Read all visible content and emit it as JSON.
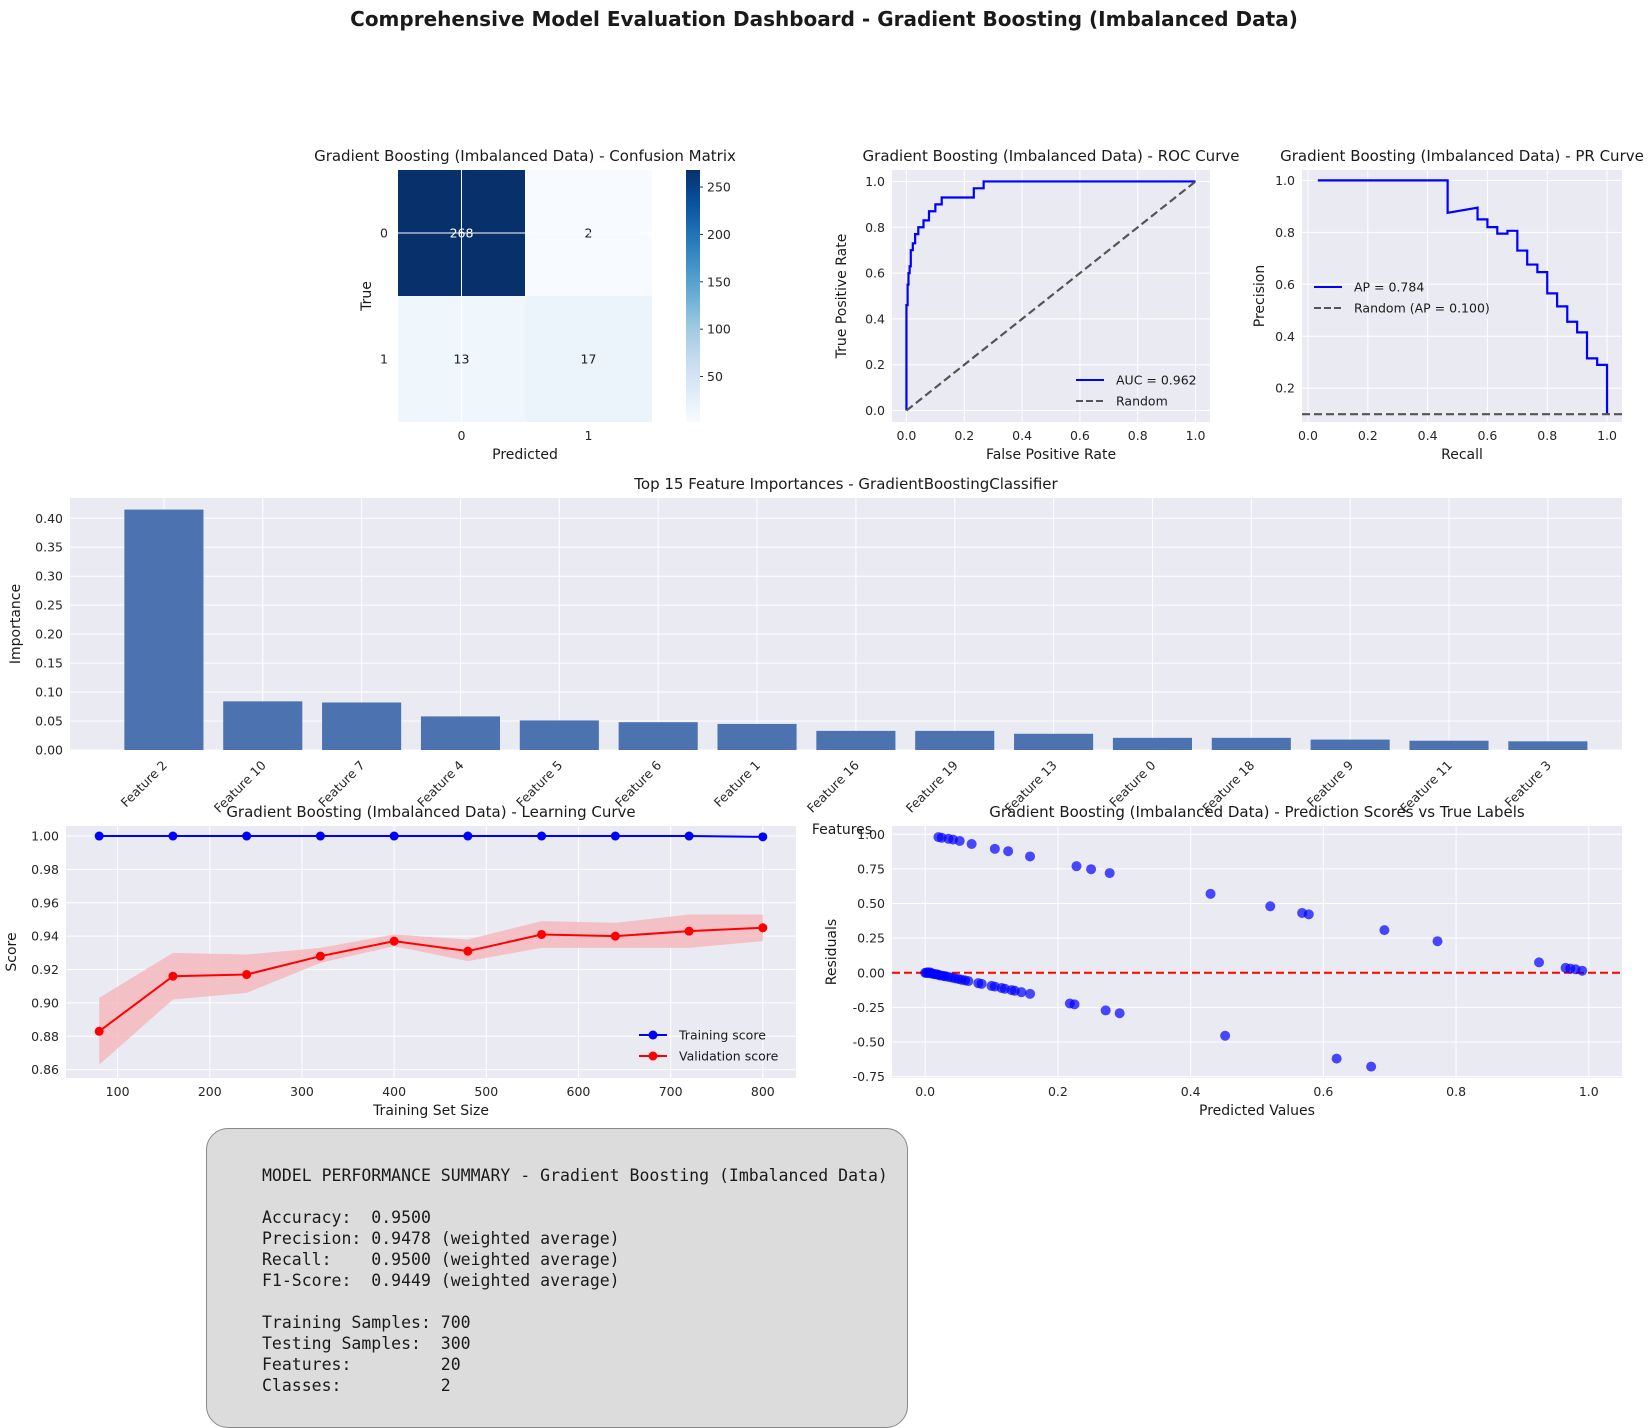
{
  "suptitle": "Comprehensive Model Evaluation Dashboard - Gradient Boosting (Imbalanced Data)",
  "colors": {
    "axes_bg": "#eaeaf2",
    "grid": "#ffffff",
    "blue_line": "#0000ff",
    "red_line": "#ff0000",
    "bar": "#4c72b0",
    "random_line": "#555555",
    "cm_dark": "#08306b",
    "cm_light": "#f7fbff",
    "red_band": "#f4b9be"
  },
  "chart_data": [
    {
      "id": "confusion",
      "type": "heatmap",
      "title": "Gradient Boosting (Imbalanced Data) - Confusion Matrix",
      "xlabel": "Predicted",
      "ylabel": "True",
      "x_labels": [
        "0",
        "1"
      ],
      "y_labels": [
        "0",
        "1"
      ],
      "matrix": [
        [
          268,
          2
        ],
        [
          13,
          17
        ]
      ],
      "cell_labels": [
        [
          "268",
          "2"
        ],
        [
          "13",
          "17"
        ]
      ],
      "colormap": "Blues",
      "colorbar": {
        "min": 2,
        "max": 268,
        "ticks": [
          50,
          100,
          150,
          200,
          250
        ]
      }
    },
    {
      "id": "roc",
      "type": "line",
      "title": "Gradient Boosting (Imbalanced Data) - ROC Curve",
      "xlabel": "False Positive Rate",
      "ylabel": "True Positive Rate",
      "xlim": [
        -0.05,
        1.05
      ],
      "ylim": [
        -0.05,
        1.05
      ],
      "xticks": [
        0.0,
        0.2,
        0.4,
        0.6,
        0.8,
        1.0
      ],
      "yticks": [
        0.0,
        0.2,
        0.4,
        0.6,
        0.8,
        1.0
      ],
      "tick_labels": [
        "0.0",
        "0.2",
        "0.4",
        "0.6",
        "0.8",
        "1.0"
      ],
      "legend_position": "lower-right",
      "series": [
        {
          "name": "AUC = 0.962",
          "style": "solid",
          "color": "#0000ff",
          "x": [
            0.0,
            0.0,
            0.004,
            0.004,
            0.007,
            0.007,
            0.011,
            0.011,
            0.015,
            0.015,
            0.022,
            0.022,
            0.03,
            0.03,
            0.041,
            0.041,
            0.059,
            0.059,
            0.078,
            0.078,
            0.1,
            0.1,
            0.122,
            0.122,
            0.144,
            0.144,
            0.233,
            0.233,
            0.267,
            0.267,
            1.0
          ],
          "y": [
            0.0,
            0.46,
            0.46,
            0.55,
            0.55,
            0.6,
            0.6,
            0.63,
            0.63,
            0.7,
            0.7,
            0.73,
            0.73,
            0.77,
            0.77,
            0.8,
            0.8,
            0.83,
            0.83,
            0.87,
            0.87,
            0.9,
            0.9,
            0.93,
            0.93,
            0.93,
            0.93,
            0.97,
            0.97,
            1.0,
            1.0
          ]
        },
        {
          "name": "Random",
          "style": "dashed",
          "color": "#555555",
          "x": [
            0,
            1
          ],
          "y": [
            0,
            1
          ]
        }
      ]
    },
    {
      "id": "pr",
      "type": "line",
      "title": "Gradient Boosting (Imbalanced Data) - PR Curve",
      "xlabel": "Recall",
      "ylabel": "Precision",
      "xlim": [
        -0.02,
        1.05
      ],
      "ylim": [
        0.07,
        1.04
      ],
      "xticks": [
        0.0,
        0.2,
        0.4,
        0.6,
        0.8,
        1.0
      ],
      "yticks": [
        0.2,
        0.4,
        0.6,
        0.8,
        1.0
      ],
      "xtick_labels": [
        "0.0",
        "0.2",
        "0.4",
        "0.6",
        "0.8",
        "1.0"
      ],
      "ytick_labels": [
        "0.2",
        "0.4",
        "0.6",
        "0.8",
        "1.0"
      ],
      "legend_position": "center-left",
      "series": [
        {
          "name": "AP = 0.784",
          "style": "solid",
          "color": "#0000ff",
          "x": [
            0.033,
            0.467,
            0.467,
            0.567,
            0.567,
            0.6,
            0.6,
            0.633,
            0.633,
            0.667,
            0.667,
            0.7,
            0.7,
            0.733,
            0.733,
            0.767,
            0.767,
            0.8,
            0.8,
            0.833,
            0.833,
            0.867,
            0.867,
            0.9,
            0.9,
            0.933,
            0.933,
            0.967,
            0.967,
            1.0,
            1.0
          ],
          "y": [
            1.0,
            1.0,
            0.875,
            0.895,
            0.85,
            0.85,
            0.82,
            0.82,
            0.795,
            0.795,
            0.806,
            0.806,
            0.73,
            0.73,
            0.676,
            0.676,
            0.647,
            0.647,
            0.565,
            0.565,
            0.515,
            0.515,
            0.456,
            0.456,
            0.415,
            0.415,
            0.315,
            0.315,
            0.29,
            0.29,
            0.1
          ]
        },
        {
          "name": "Random (AP = 0.100)",
          "style": "dashed",
          "color": "#555555",
          "x": [
            -0.02,
            1.05
          ],
          "y": [
            0.1,
            0.1
          ]
        }
      ]
    },
    {
      "id": "importance",
      "type": "bar",
      "title": "Top 15 Feature Importances - GradientBoostingClassifier",
      "xlabel": "Features",
      "ylabel": "Importance",
      "ylim": [
        0,
        0.435
      ],
      "yticks": [
        0.0,
        0.05,
        0.1,
        0.15,
        0.2,
        0.25,
        0.3,
        0.35,
        0.4
      ],
      "ytick_labels": [
        "0.00",
        "0.05",
        "0.10",
        "0.15",
        "0.20",
        "0.25",
        "0.30",
        "0.35",
        "0.40"
      ],
      "categories": [
        "Feature 2",
        "Feature 10",
        "Feature 7",
        "Feature 4",
        "Feature 5",
        "Feature 6",
        "Feature 1",
        "Feature 16",
        "Feature 19",
        "Feature 13",
        "Feature 0",
        "Feature 18",
        "Feature 9",
        "Feature 11",
        "Feature 3"
      ],
      "values": [
        0.415,
        0.084,
        0.082,
        0.058,
        0.051,
        0.048,
        0.045,
        0.033,
        0.033,
        0.028,
        0.021,
        0.021,
        0.018,
        0.016,
        0.015
      ]
    },
    {
      "id": "learning",
      "type": "line",
      "title": "Gradient Boosting (Imbalanced Data) - Learning Curve",
      "xlabel": "Training Set Size",
      "ylabel": "Score",
      "xlim": [
        44,
        836
      ],
      "ylim": [
        0.855,
        1.006
      ],
      "xticks": [
        100,
        200,
        300,
        400,
        500,
        600,
        700,
        800
      ],
      "yticks": [
        0.86,
        0.88,
        0.9,
        0.92,
        0.94,
        0.96,
        0.98,
        1.0
      ],
      "xtick_labels": [
        "100",
        "200",
        "300",
        "400",
        "500",
        "600",
        "700",
        "800"
      ],
      "ytick_labels": [
        "0.86",
        "0.88",
        "0.90",
        "0.92",
        "0.94",
        "0.96",
        "0.98",
        "1.00"
      ],
      "legend_position": "lower-right",
      "x": [
        80,
        160,
        240,
        320,
        400,
        480,
        560,
        640,
        720,
        800
      ],
      "series": [
        {
          "name": "Training score",
          "color": "#0000ff",
          "values": [
            1.0,
            1.0,
            1.0,
            1.0,
            1.0,
            1.0,
            1.0,
            1.0,
            1.0,
            0.9995
          ],
          "lower": [
            1.0,
            1.0,
            1.0,
            1.0,
            1.0,
            1.0,
            1.0,
            1.0,
            1.0,
            0.999
          ],
          "upper": [
            1.0,
            1.0,
            1.0,
            1.0,
            1.0,
            1.0,
            1.0,
            1.0,
            1.0,
            1.0
          ]
        },
        {
          "name": "Validation score",
          "color": "#ff0000",
          "values": [
            0.883,
            0.916,
            0.917,
            0.928,
            0.937,
            0.931,
            0.941,
            0.94,
            0.943,
            0.945
          ],
          "lower": [
            0.863,
            0.902,
            0.906,
            0.924,
            0.934,
            0.925,
            0.933,
            0.933,
            0.933,
            0.937
          ],
          "upper": [
            0.903,
            0.93,
            0.929,
            0.933,
            0.941,
            0.938,
            0.949,
            0.948,
            0.953,
            0.953
          ]
        }
      ]
    },
    {
      "id": "residuals",
      "type": "scatter",
      "title": "Gradient Boosting (Imbalanced Data) - Prediction Scores vs True Labels",
      "xlabel": "Predicted Values",
      "ylabel": "Residuals",
      "xlim": [
        -0.05,
        1.05
      ],
      "ylim": [
        -0.76,
        1.06
      ],
      "xticks": [
        0.0,
        0.2,
        0.4,
        0.6,
        0.8,
        1.0
      ],
      "yticks": [
        -0.75,
        -0.5,
        -0.25,
        0.0,
        0.25,
        0.5,
        0.75,
        1.0
      ],
      "xtick_labels": [
        "0.0",
        "0.2",
        "0.4",
        "0.6",
        "0.8",
        "1.0"
      ],
      "ytick_labels": [
        "-0.75",
        "-0.50",
        "-0.25",
        "0.00",
        "0.25",
        "0.50",
        "0.75",
        "1.00"
      ],
      "reference_line": {
        "y": 0,
        "color": "#ff0000",
        "style": "dashed"
      },
      "points": [
        [
          0.02,
          0.98
        ],
        [
          0.025,
          0.975
        ],
        [
          0.035,
          0.968
        ],
        [
          0.042,
          0.962
        ],
        [
          0.052,
          0.952
        ],
        [
          0.07,
          0.93
        ],
        [
          0.105,
          0.895
        ],
        [
          0.125,
          0.878
        ],
        [
          0.158,
          0.84
        ],
        [
          0.228,
          0.77
        ],
        [
          0.25,
          0.748
        ],
        [
          0.278,
          0.72
        ],
        [
          0.43,
          0.57
        ],
        [
          0.52,
          0.48
        ],
        [
          0.568,
          0.432
        ],
        [
          0.578,
          0.422
        ],
        [
          0.692,
          0.308
        ],
        [
          0.772,
          0.228
        ],
        [
          0.925,
          0.075
        ],
        [
          0.965,
          0.035
        ],
        [
          0.972,
          0.03
        ],
        [
          0.98,
          0.025
        ],
        [
          0.99,
          0.015
        ],
        [
          0.0,
          0.0
        ],
        [
          0.002,
          -0.002
        ],
        [
          0.004,
          0.004
        ],
        [
          0.006,
          -0.003
        ],
        [
          0.008,
          0.002
        ],
        [
          0.01,
          -0.005
        ],
        [
          0.012,
          -0.008
        ],
        [
          0.015,
          -0.01
        ],
        [
          0.018,
          -0.012
        ],
        [
          0.02,
          -0.015
        ],
        [
          0.023,
          -0.02
        ],
        [
          0.027,
          -0.022
        ],
        [
          0.03,
          -0.025
        ],
        [
          0.035,
          -0.03
        ],
        [
          0.04,
          -0.035
        ],
        [
          0.045,
          -0.04
        ],
        [
          0.05,
          -0.045
        ],
        [
          0.055,
          -0.05
        ],
        [
          0.06,
          -0.055
        ],
        [
          0.065,
          -0.06
        ],
        [
          0.08,
          -0.075
        ],
        [
          0.085,
          -0.08
        ],
        [
          0.1,
          -0.095
        ],
        [
          0.105,
          -0.1
        ],
        [
          0.115,
          -0.11
        ],
        [
          0.12,
          -0.115
        ],
        [
          0.13,
          -0.125
        ],
        [
          0.135,
          -0.13
        ],
        [
          0.145,
          -0.14
        ],
        [
          0.158,
          -0.152
        ],
        [
          0.218,
          -0.222
        ],
        [
          0.225,
          -0.228
        ],
        [
          0.272,
          -0.272
        ],
        [
          0.293,
          -0.292
        ],
        [
          0.452,
          -0.455
        ],
        [
          0.62,
          -0.62
        ],
        [
          0.672,
          -0.678
        ]
      ]
    }
  ],
  "summary": {
    "lines": [
      "MODEL PERFORMANCE SUMMARY - Gradient Boosting (Imbalanced Data)",
      "",
      "Accuracy:  0.9500",
      "Precision: 0.9478 (weighted average)",
      "Recall:    0.9500 (weighted average)",
      "F1-Score:  0.9449 (weighted average)",
      "",
      "Training Samples: 700",
      "Testing Samples:  300",
      "Features:         20",
      "Classes:          2"
    ]
  }
}
